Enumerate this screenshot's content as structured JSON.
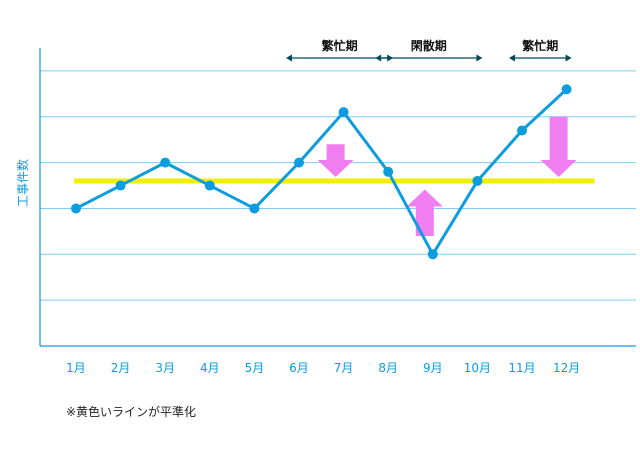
{
  "chart_data": {
    "type": "line",
    "ylabel": "工事件数",
    "categories": [
      "1月",
      "2月",
      "3月",
      "4月",
      "5月",
      "6月",
      "7月",
      "8月",
      "9月",
      "10月",
      "11月",
      "12月"
    ],
    "series": [
      {
        "values": [
          3.0,
          3.5,
          4.0,
          3.5,
          3.0,
          4.0,
          5.1,
          3.8,
          2.0,
          3.6,
          4.7,
          5.6
        ]
      }
    ],
    "baseline": {
      "value": 3.6,
      "color": "#f0f000"
    },
    "ylim": [
      0,
      6.5
    ],
    "grid": true,
    "line_color": "#0d9ddf",
    "periods": [
      {
        "label": "繁忙期",
        "from": "6月",
        "to": "8月"
      },
      {
        "label": "閑散期",
        "from": "8月",
        "to": "10月"
      },
      {
        "label": "繁忙期",
        "from": "11月",
        "to": "12月"
      }
    ],
    "arrows": [
      {
        "category": "7月",
        "direction": "down",
        "from": 4.4,
        "to": 3.6
      },
      {
        "category": "9月",
        "direction": "up",
        "from": 2.4,
        "to": 3.5
      },
      {
        "category": "12月",
        "direction": "down",
        "from": 5.0,
        "to": 3.6
      }
    ],
    "arrow_color": "#f07ef0",
    "note": "※黄色いラインが平準化"
  }
}
